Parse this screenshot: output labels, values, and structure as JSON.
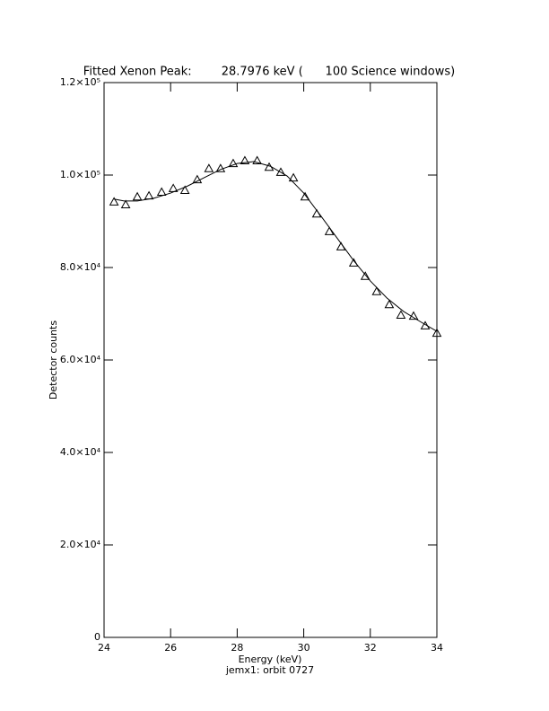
{
  "chart_data": {
    "type": "scatter",
    "title": "Fitted Xenon Peak:        28.7976 keV (      100 Science windows)",
    "x_label": "Energy (keV)",
    "subtitle": "jemx1: orbit 0727",
    "y_label": "Detector counts",
    "xlim": [
      24,
      34
    ],
    "xticks": [
      24,
      26,
      28,
      30,
      32,
      34
    ],
    "ylim": [
      0,
      120000
    ],
    "yticks": [
      0,
      {
        "value": 20000,
        "label": "2.0×10⁴"
      },
      {
        "value": 40000,
        "label": "4.0×10⁴"
      },
      {
        "value": 60000,
        "label": "6.0×10⁴"
      },
      {
        "value": 80000,
        "label": "8.0×10⁴"
      },
      {
        "value": 100000,
        "label": "1.0×10⁵"
      },
      {
        "value": 120000,
        "label": "1.2×10⁵"
      }
    ],
    "series": [
      {
        "marker": "triangle",
        "color": "#000000",
        "x": [
          24.3,
          24.65,
          25.0,
          25.35,
          25.73,
          26.08,
          26.43,
          26.8,
          27.15,
          27.5,
          27.88,
          28.23,
          28.6,
          28.96,
          29.31,
          29.69,
          30.04,
          30.39,
          30.77,
          31.12,
          31.5,
          31.85,
          32.19,
          32.57,
          32.92,
          33.3,
          33.65,
          34.0
        ],
        "values": [
          94200,
          93600,
          95300,
          95500,
          96300,
          97100,
          96700,
          99000,
          101400,
          101400,
          102500,
          103100,
          103100,
          101700,
          100600,
          99400,
          95300,
          91600,
          87800,
          84500,
          81000,
          78100,
          74800,
          72000,
          69700,
          69500,
          67400,
          65800
        ]
      },
      {
        "marker": "line",
        "color": "#000000",
        "x": [
          24.3,
          24.6,
          25.0,
          25.5,
          26.0,
          26.5,
          27.0,
          27.5,
          28.0,
          28.5,
          29.0,
          29.5,
          30.0,
          30.5,
          31.0,
          31.5,
          32.0,
          32.5,
          33.0,
          33.5,
          34.0
        ],
        "values": [
          94800,
          94400,
          94400,
          95000,
          96100,
          97600,
          99400,
          101200,
          102500,
          102900,
          101900,
          99800,
          96100,
          91300,
          86400,
          81500,
          77100,
          73400,
          70500,
          68300,
          66200
        ]
      }
    ]
  }
}
